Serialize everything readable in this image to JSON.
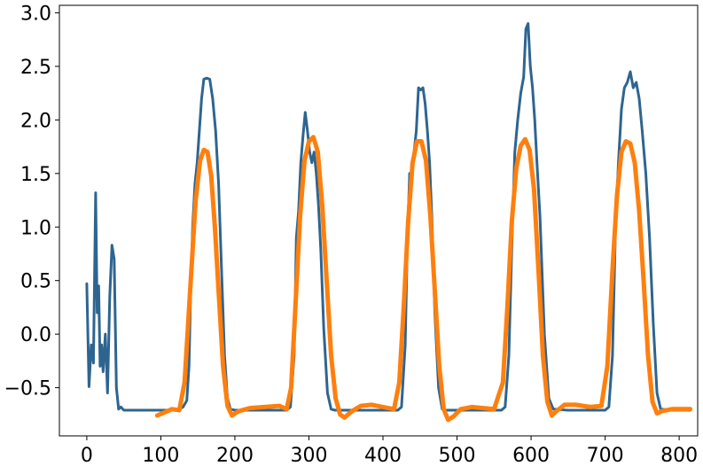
{
  "chart_data": {
    "type": "line",
    "title": "",
    "xlabel": "",
    "ylabel": "",
    "xlim": [
      -37,
      825
    ],
    "ylim": [
      -0.95,
      3.07
    ],
    "xticks": [
      0,
      100,
      200,
      300,
      400,
      500,
      600,
      700,
      800
    ],
    "yticks": [
      -0.5,
      0.0,
      0.5,
      1.0,
      1.5,
      2.0,
      2.5,
      3.0
    ],
    "xtick_labels": [
      "0",
      "100",
      "200",
      "300",
      "400",
      "500",
      "600",
      "700",
      "800"
    ],
    "ytick_labels": [
      "−0.5",
      "0.0",
      "0.5",
      "1.0",
      "1.5",
      "2.0",
      "2.5",
      "3.0"
    ],
    "grid": false,
    "legend": "none",
    "series": [
      {
        "color": "#2e6590",
        "line_width": 3,
        "x": [
          0,
          3,
          6,
          9,
          12,
          14,
          16,
          18,
          20,
          22,
          25,
          28,
          31,
          34,
          37,
          40,
          43,
          46,
          50,
          60,
          80,
          100,
          120,
          125,
          130,
          135,
          138,
          140,
          143,
          146,
          149,
          152,
          155,
          158,
          162,
          166,
          170,
          174,
          178,
          182,
          186,
          190,
          194,
          200,
          220,
          250,
          270,
          275,
          280,
          283,
          286,
          289,
          292,
          295,
          298,
          301,
          304,
          307,
          310,
          313,
          316,
          320,
          325,
          330,
          335,
          340,
          350,
          370,
          400,
          420,
          425,
          430,
          433,
          436,
          439,
          442,
          445,
          448,
          451,
          454,
          457,
          460,
          463,
          466,
          470,
          475,
          480,
          485,
          500,
          530,
          560,
          565,
          570,
          574,
          578,
          582,
          586,
          590,
          593,
          596,
          599,
          602,
          605,
          608,
          612,
          618,
          624,
          630,
          650,
          680,
          700,
          705,
          710,
          714,
          718,
          722,
          726,
          730,
          734,
          738,
          742,
          746,
          750,
          755,
          760,
          765,
          770,
          775,
          790,
          815
        ],
        "y": [
          0.47,
          -0.49,
          -0.1,
          -0.27,
          1.32,
          0.2,
          0.45,
          -0.3,
          -0.1,
          -0.35,
          0.0,
          -0.55,
          0.35,
          0.83,
          0.7,
          -0.5,
          -0.7,
          -0.68,
          -0.71,
          -0.71,
          -0.71,
          -0.71,
          -0.71,
          -0.7,
          -0.68,
          -0.62,
          -0.3,
          0.3,
          1.0,
          1.4,
          1.6,
          1.9,
          2.2,
          2.38,
          2.39,
          2.38,
          2.2,
          1.9,
          1.4,
          0.6,
          -0.2,
          -0.6,
          -0.7,
          -0.71,
          -0.71,
          -0.71,
          -0.71,
          -0.68,
          -0.2,
          0.9,
          1.15,
          1.6,
          1.85,
          2.07,
          1.9,
          1.7,
          1.6,
          1.7,
          1.5,
          1.2,
          0.8,
          0.05,
          -0.55,
          -0.7,
          -0.71,
          -0.71,
          -0.71,
          -0.71,
          -0.71,
          -0.71,
          -0.68,
          -0.1,
          0.9,
          1.5,
          1.5,
          1.7,
          1.9,
          2.3,
          2.28,
          2.3,
          2.15,
          1.9,
          1.6,
          1.1,
          0.2,
          -0.5,
          -0.7,
          -0.71,
          -0.71,
          -0.71,
          -0.71,
          -0.68,
          -0.2,
          0.8,
          1.7,
          2.0,
          2.25,
          2.4,
          2.85,
          2.9,
          2.5,
          2.3,
          2.0,
          1.6,
          1.1,
          0.0,
          -0.6,
          -0.7,
          -0.71,
          -0.71,
          -0.71,
          -0.68,
          -0.2,
          1.0,
          1.6,
          2.1,
          2.3,
          2.35,
          2.45,
          2.3,
          2.35,
          2.2,
          1.9,
          1.5,
          0.9,
          0.1,
          -0.55,
          -0.7,
          -0.71,
          -0.71
        ]
      },
      {
        "color": "#ff7f0e",
        "line_width": 5,
        "x": [
          95,
          105,
          115,
          125,
          132,
          140,
          147,
          153,
          158,
          163,
          168,
          173,
          178,
          184,
          190,
          196,
          205,
          220,
          240,
          260,
          270,
          276,
          282,
          288,
          294,
          300,
          306,
          312,
          318,
          324,
          330,
          336,
          342,
          348,
          358,
          370,
          385,
          400,
          415,
          422,
          428,
          434,
          440,
          446,
          452,
          458,
          464,
          470,
          476,
          482,
          488,
          495,
          505,
          520,
          535,
          550,
          562,
          568,
          574,
          580,
          586,
          592,
          598,
          604,
          610,
          616,
          622,
          628,
          634,
          645,
          660,
          680,
          695,
          703,
          710,
          716,
          722,
          728,
          734,
          740,
          746,
          752,
          758,
          764,
          770,
          776,
          790,
          815
        ],
        "y": [
          -0.76,
          -0.73,
          -0.7,
          -0.71,
          -0.45,
          0.45,
          1.25,
          1.62,
          1.72,
          1.7,
          1.48,
          1.0,
          0.4,
          -0.3,
          -0.67,
          -0.76,
          -0.72,
          -0.69,
          -0.68,
          -0.67,
          -0.7,
          -0.5,
          0.3,
          1.1,
          1.62,
          1.8,
          1.84,
          1.7,
          1.2,
          0.5,
          -0.2,
          -0.6,
          -0.75,
          -0.78,
          -0.72,
          -0.67,
          -0.66,
          -0.68,
          -0.7,
          -0.45,
          0.25,
          1.05,
          1.6,
          1.8,
          1.8,
          1.62,
          1.1,
          0.4,
          -0.3,
          -0.7,
          -0.8,
          -0.77,
          -0.7,
          -0.68,
          -0.69,
          -0.7,
          -0.45,
          0.25,
          1.05,
          1.55,
          1.76,
          1.82,
          1.72,
          1.35,
          0.6,
          -0.2,
          -0.63,
          -0.76,
          -0.72,
          -0.66,
          -0.66,
          -0.68,
          -0.67,
          -0.3,
          0.6,
          1.3,
          1.7,
          1.8,
          1.78,
          1.6,
          1.15,
          0.5,
          -0.2,
          -0.63,
          -0.74,
          -0.72,
          -0.7,
          -0.7
        ]
      }
    ]
  }
}
